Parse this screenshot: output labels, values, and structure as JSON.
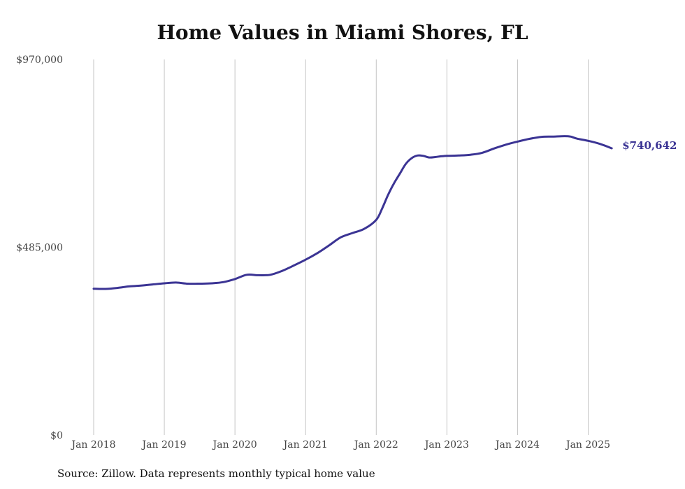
{
  "chart_data": {
    "type": "line",
    "title": "Home Values in Miami Shores, FL",
    "xlabel": "",
    "ylabel": "",
    "ylim": [
      0,
      970000
    ],
    "y_ticks": [
      {
        "value": 0,
        "label": "$0"
      },
      {
        "value": 485000,
        "label": "$485,000"
      },
      {
        "value": 970000,
        "label": "$970,000"
      }
    ],
    "x_ticks": [
      {
        "value": "2018-01",
        "label": "Jan 2018"
      },
      {
        "value": "2019-01",
        "label": "Jan 2019"
      },
      {
        "value": "2020-01",
        "label": "Jan 2020"
      },
      {
        "value": "2021-01",
        "label": "Jan 2021"
      },
      {
        "value": "2022-01",
        "label": "Jan 2022"
      },
      {
        "value": "2023-01",
        "label": "Jan 2023"
      },
      {
        "value": "2024-01",
        "label": "Jan 2024"
      },
      {
        "value": "2025-01",
        "label": "Jan 2025"
      }
    ],
    "grid": "vertical",
    "line_color": "#3b3494",
    "end_label": "$740,642",
    "series": [
      {
        "x": [
          "2018-01",
          "2018-03",
          "2018-05",
          "2018-07",
          "2018-09",
          "2018-11",
          "2019-01",
          "2019-03",
          "2019-05",
          "2019-07",
          "2019-09",
          "2019-11",
          "2020-01",
          "2020-03",
          "2020-05",
          "2020-07",
          "2020-09",
          "2020-11",
          "2021-01",
          "2021-03",
          "2021-05",
          "2021-07",
          "2021-09",
          "2021-11",
          "2022-01",
          "2022-02",
          "2022-03",
          "2022-04",
          "2022-05",
          "2022-06",
          "2022-07",
          "2022-08",
          "2022-09",
          "2022-10",
          "2022-11",
          "2022-12",
          "2023-01",
          "2023-03",
          "2023-05",
          "2023-07",
          "2023-09",
          "2023-11",
          "2024-01",
          "2024-03",
          "2024-05",
          "2024-07",
          "2024-09",
          "2024-10",
          "2024-11",
          "2025-01",
          "2025-03",
          "2025-05"
        ],
        "y": [
          378000,
          377500,
          380000,
          384000,
          386000,
          389000,
          392000,
          394000,
          391000,
          391000,
          392000,
          395000,
          403000,
          414000,
          413000,
          414000,
          424000,
          438000,
          453000,
          470000,
          490000,
          511000,
          522000,
          533000,
          556000,
          585000,
          620000,
          650000,
          675000,
          700000,
          715000,
          722000,
          721000,
          717000,
          718000,
          720000,
          721000,
          722000,
          724000,
          729000,
          740000,
          750000,
          758000,
          765000,
          770000,
          771000,
          772000,
          771000,
          766000,
          760000,
          752000,
          740642
        ]
      }
    ]
  },
  "footer": {
    "source": "Source: Zillow. Data represents monthly typical home value"
  }
}
